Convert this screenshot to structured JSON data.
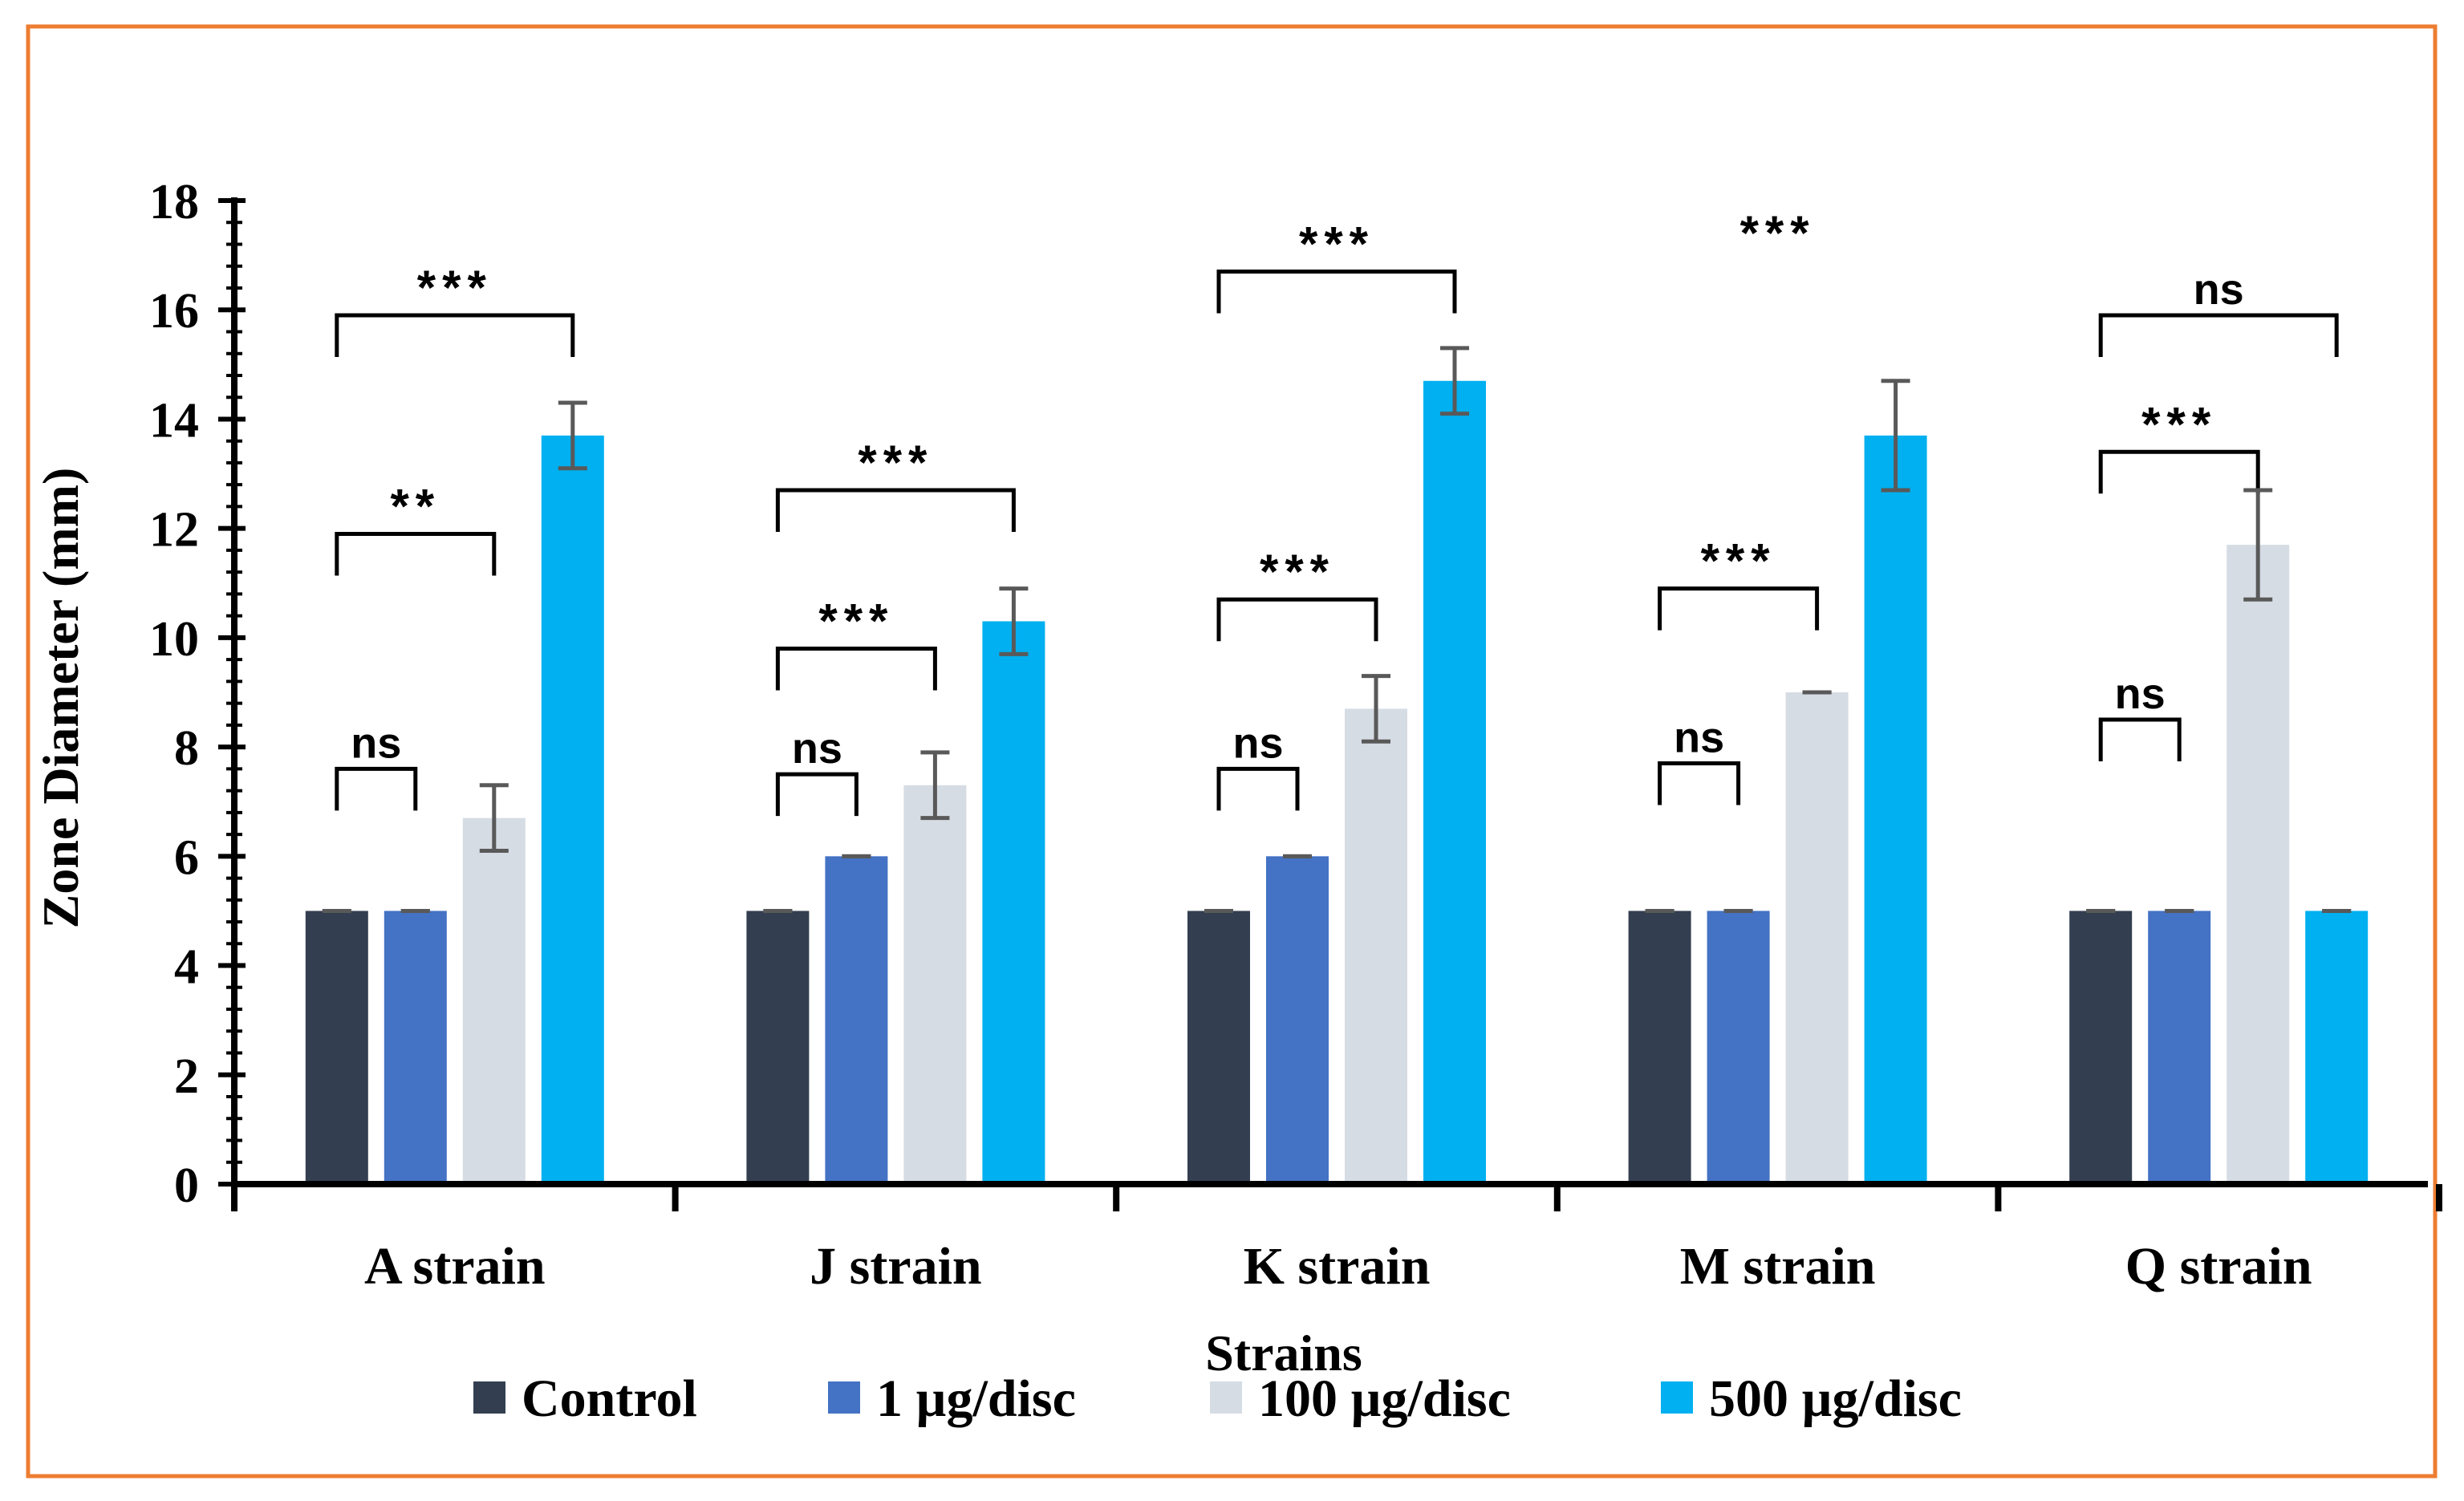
{
  "colors": {
    "frame": "#ED7D31",
    "axis": "#000000",
    "error_bar": "#595959",
    "bracket": "#000000"
  },
  "chart_data": {
    "type": "bar",
    "title": "",
    "xlabel": "Strains",
    "ylabel": "Zone Diameter (mm)",
    "ylim": [
      0,
      18
    ],
    "yticks": [
      "0",
      "2",
      "4",
      "6",
      "8",
      "10",
      "12",
      "14",
      "16",
      "18"
    ],
    "grid": false,
    "legend_position": "bottom",
    "categories": [
      "A strain",
      "J strain",
      "K strain",
      "M strain",
      "Q strain"
    ],
    "series": [
      {
        "name": "Control",
        "color": "#333F50",
        "values": [
          5,
          5,
          5,
          5,
          5
        ],
        "errors": [
          0,
          0,
          0,
          0,
          0
        ]
      },
      {
        "name": "1 µg/disc",
        "color": "#4472C4",
        "values": [
          5,
          6,
          6,
          5,
          5
        ],
        "errors": [
          0,
          0,
          0,
          0,
          0
        ]
      },
      {
        "name": "100 µg/disc",
        "color": "#D6DCE4",
        "values": [
          6.7,
          7.3,
          8.7,
          9,
          11.7
        ],
        "errors": [
          0.6,
          0.6,
          0.6,
          0,
          1
        ]
      },
      {
        "name": "500 µg/disc",
        "color": "#00B0F0",
        "values": [
          13.7,
          10.3,
          14.7,
          13.7,
          5
        ],
        "errors": [
          0.6,
          0.6,
          0.6,
          1,
          0
        ]
      }
    ],
    "annotations": [
      {
        "category": 0,
        "from_series": 0,
        "to_series": 1,
        "label": "ns",
        "level": 7.6
      },
      {
        "category": 0,
        "from_series": 0,
        "to_series": 2,
        "label": "**",
        "level": 11.9
      },
      {
        "category": 0,
        "from_series": 0,
        "to_series": 3,
        "label": "***",
        "level": 15.9
      },
      {
        "category": 1,
        "from_series": 0,
        "to_series": 1,
        "label": "ns",
        "level": 7.5
      },
      {
        "category": 1,
        "from_series": 0,
        "to_series": 2,
        "label": "***",
        "level": 9.8
      },
      {
        "category": 1,
        "from_series": 0,
        "to_series": 3,
        "label": "***",
        "level": 12.7
      },
      {
        "category": 2,
        "from_series": 0,
        "to_series": 1,
        "label": "ns",
        "level": 7.6
      },
      {
        "category": 2,
        "from_series": 0,
        "to_series": 2,
        "label": "***",
        "level": 10.7
      },
      {
        "category": 2,
        "from_series": 0,
        "to_series": 3,
        "label": "***",
        "level": 16.7
      },
      {
        "category": 3,
        "from_series": 0,
        "to_series": 1,
        "label": "ns",
        "level": 7.7
      },
      {
        "category": 3,
        "from_series": 0,
        "to_series": 2,
        "label": "***",
        "level": 10.9
      },
      {
        "category": 3,
        "label": "***",
        "level": 16.9
      },
      {
        "category": 4,
        "from_series": 0,
        "to_series": 1,
        "label": "ns",
        "level": 8.5
      },
      {
        "category": 4,
        "from_series": 0,
        "to_series": 2,
        "label": "***",
        "level": 13.4
      },
      {
        "category": 4,
        "from_series": 0,
        "to_series": 3,
        "label": "ns",
        "level": 15.9
      }
    ]
  }
}
